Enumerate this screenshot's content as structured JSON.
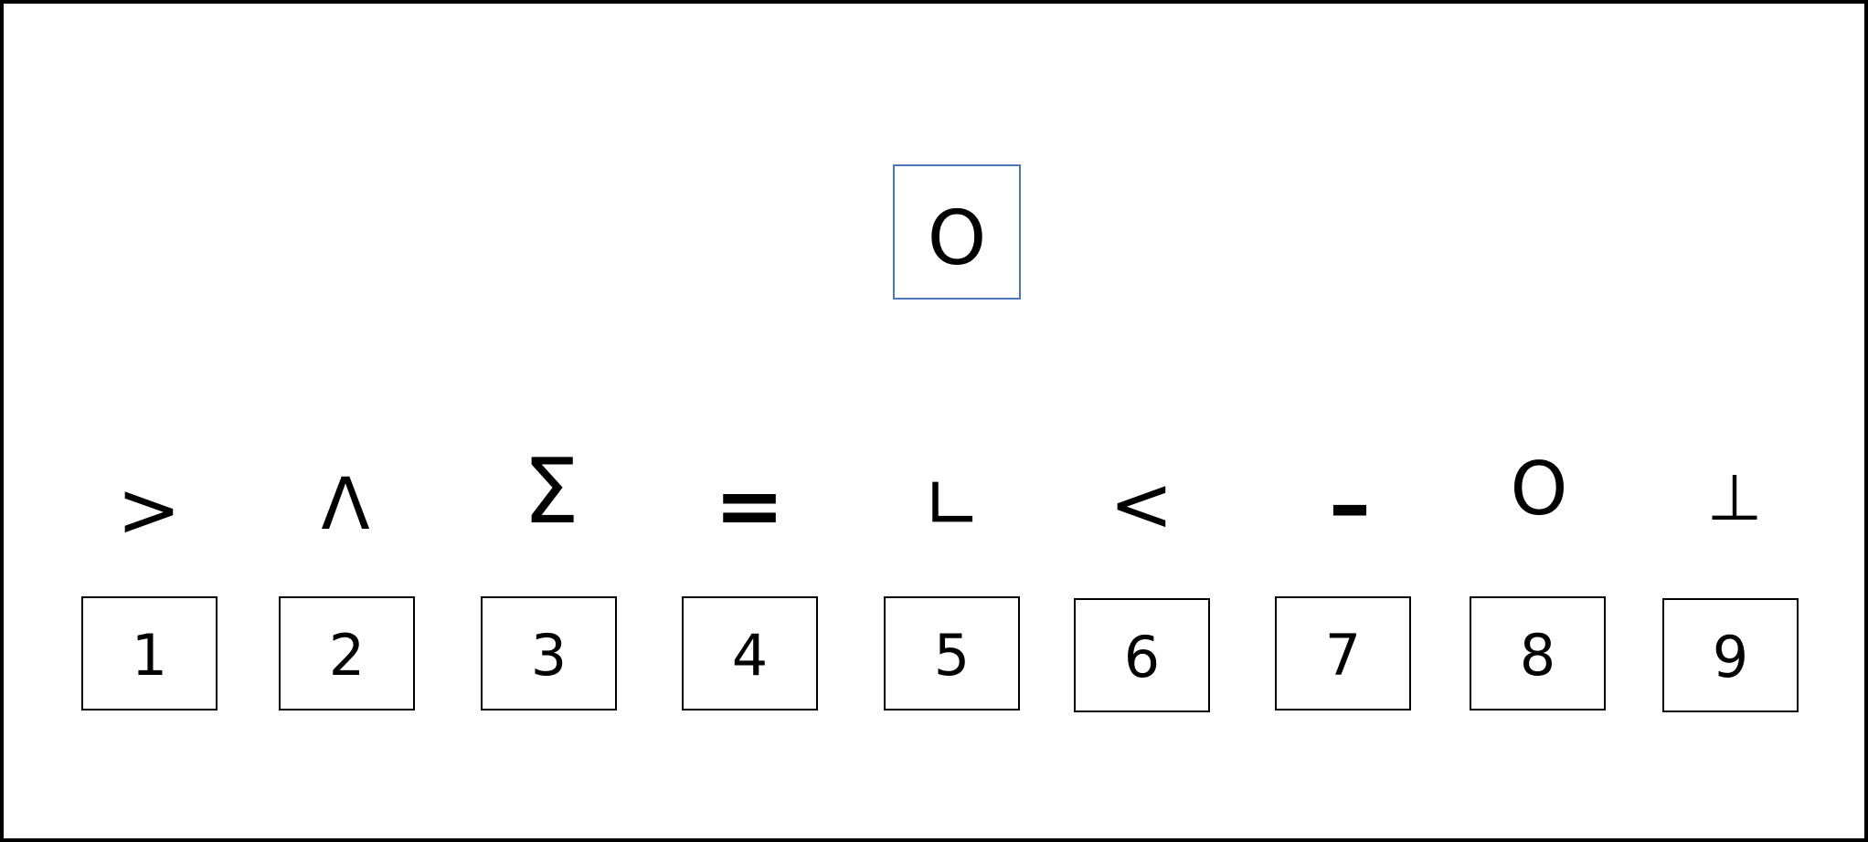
{
  "target": {
    "symbol": "O"
  },
  "symbols": [
    ">",
    "Λ",
    "Σ",
    "=",
    "∟",
    "<",
    "–",
    "O",
    "⊥"
  ],
  "options": [
    "1",
    "2",
    "3",
    "4",
    "5",
    "6",
    "7",
    "8",
    "9"
  ],
  "colors": {
    "target_border": "#4a78b8",
    "option_border": "#000000",
    "frame_border": "#000000",
    "background": "#ffffff"
  }
}
